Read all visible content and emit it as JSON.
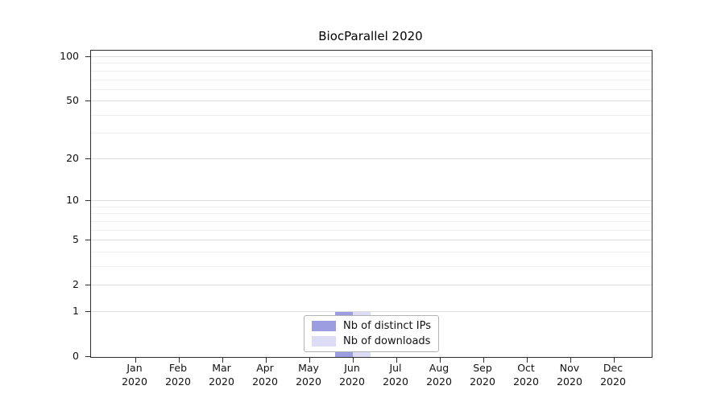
{
  "chart_data": {
    "type": "bar",
    "title": "BiocParallel 2020",
    "x_categories": [
      "Jan",
      "Feb",
      "Mar",
      "Apr",
      "May",
      "Jun",
      "Jul",
      "Aug",
      "Sep",
      "Oct",
      "Nov",
      "Dec"
    ],
    "x_year": "2020",
    "series": [
      {
        "name": "Nb of distinct IPs",
        "color": "#9c9ce0",
        "values": [
          0,
          0,
          0,
          0,
          0,
          1,
          0,
          0,
          0,
          0,
          0,
          0
        ]
      },
      {
        "name": "Nb of downloads",
        "color": "#dcdcf7",
        "values": [
          0,
          0,
          0,
          0,
          0,
          1,
          0,
          0,
          0,
          0,
          0,
          0
        ]
      }
    ],
    "y_ticks": [
      0,
      1,
      2,
      5,
      10,
      20,
      50,
      100
    ],
    "y_grid_minor": [
      1,
      2,
      3,
      4,
      5,
      6,
      7,
      8,
      9,
      10,
      20,
      30,
      40,
      50,
      60,
      70,
      80,
      90,
      100
    ],
    "y_scale": "log1p",
    "ylim": [
      0,
      110
    ],
    "grid": true,
    "legend_position": "bottom-center"
  }
}
